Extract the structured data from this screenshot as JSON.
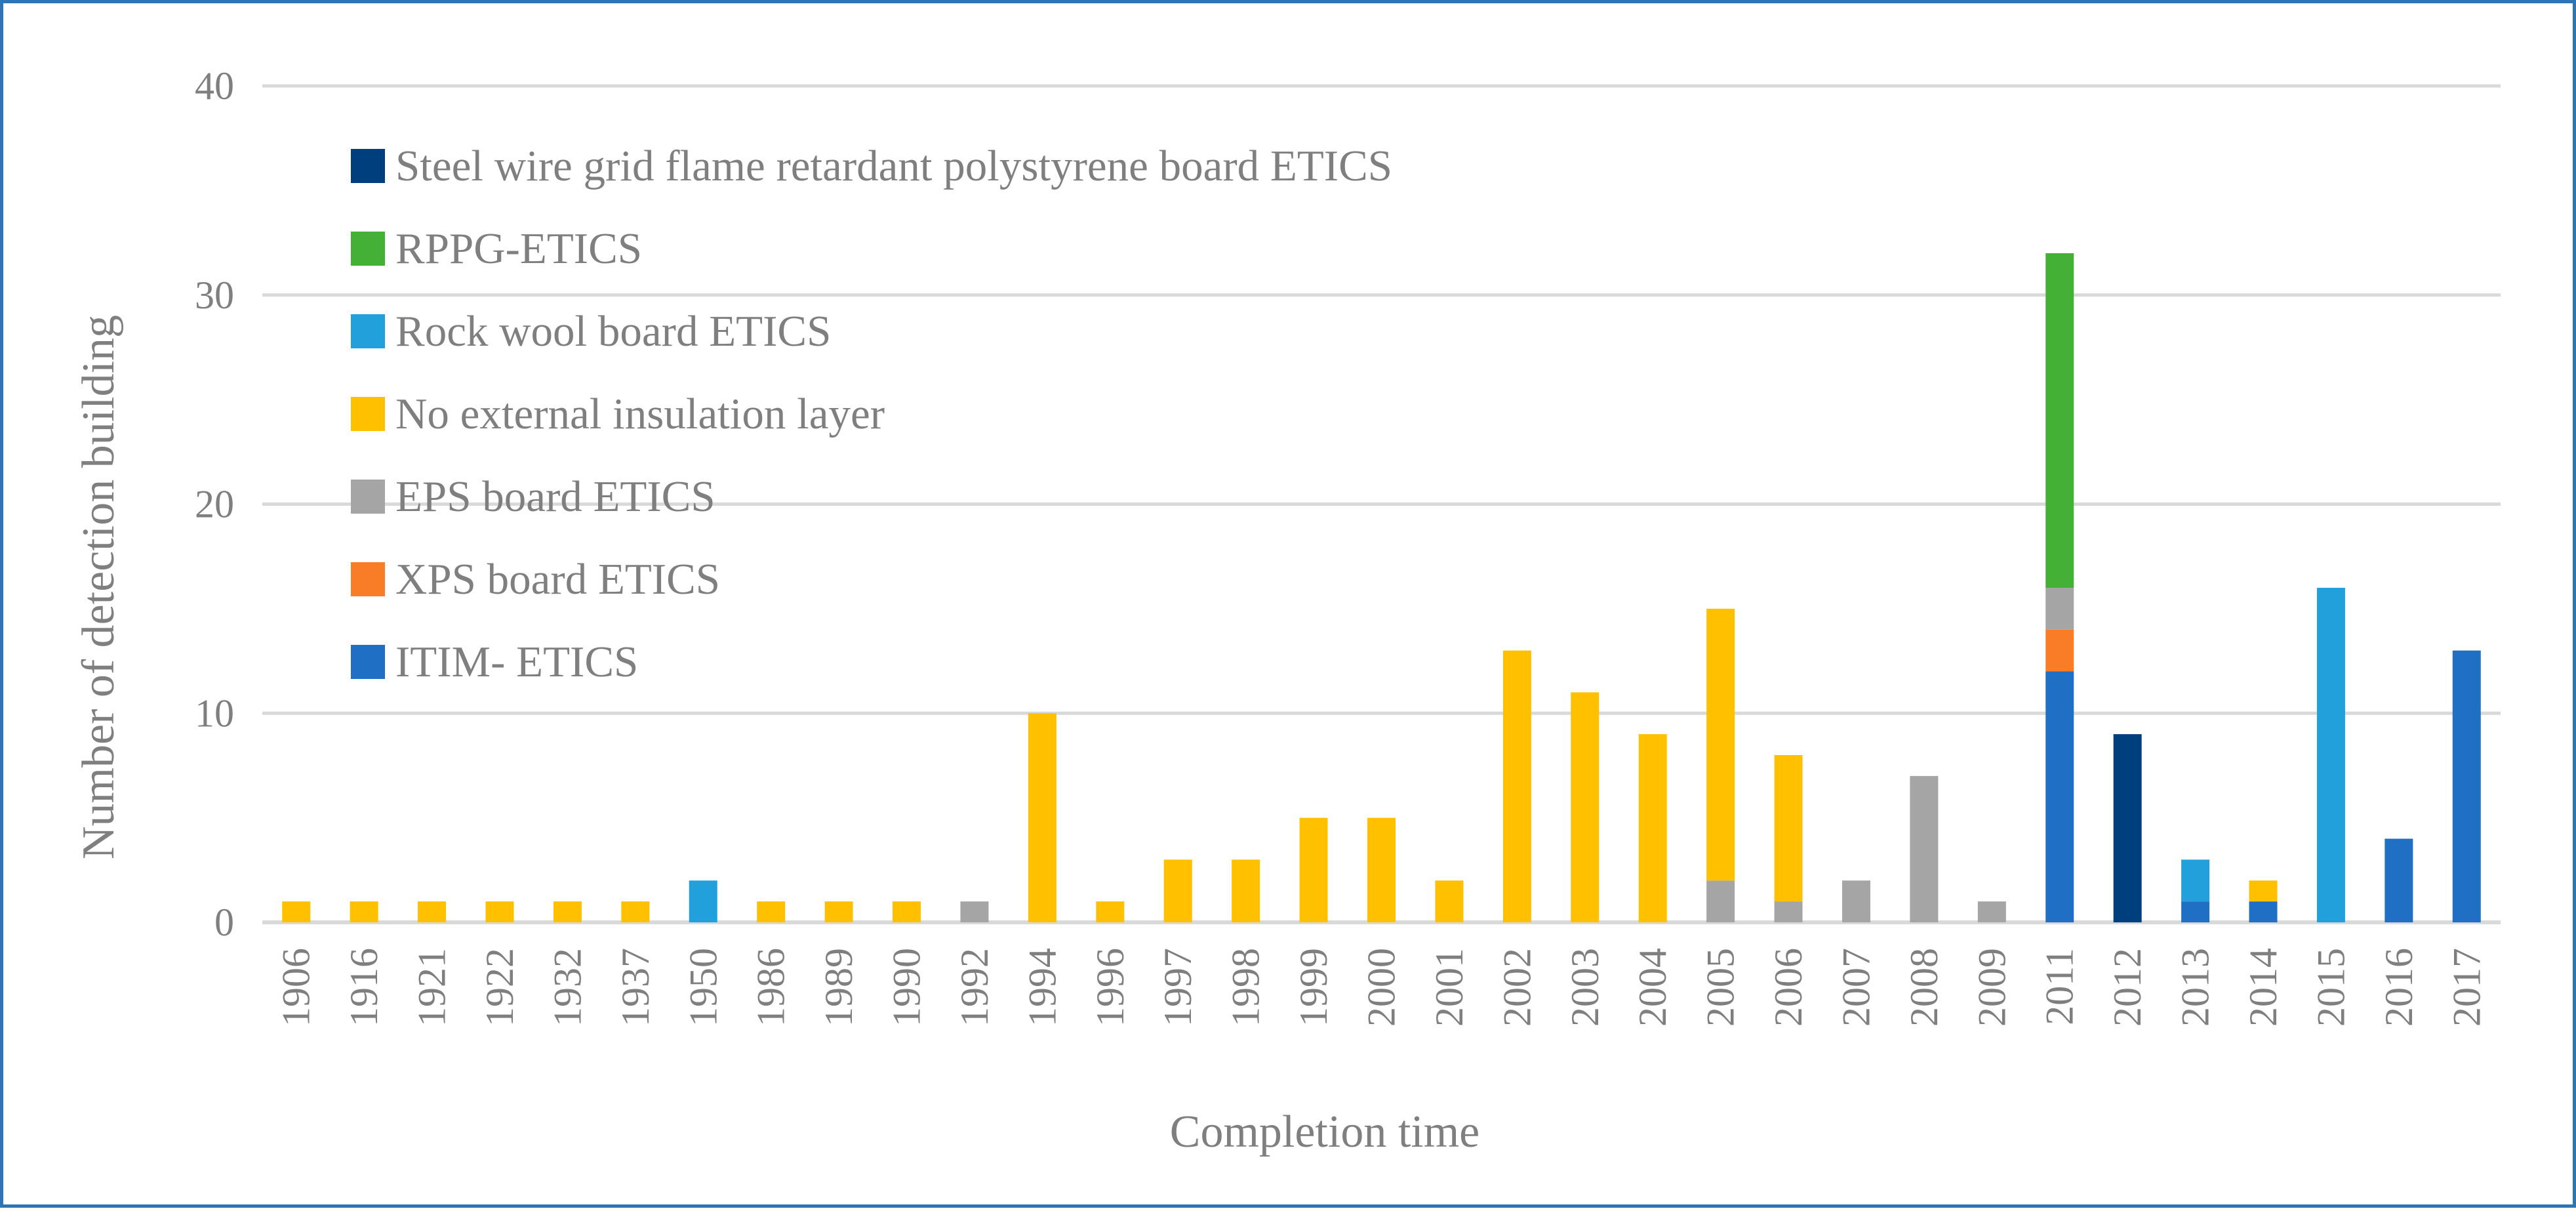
{
  "chart_data": {
    "type": "bar",
    "stacked": true,
    "xlabel": "Completion time",
    "ylabel": "Number of detection building",
    "ylim": [
      0,
      40
    ],
    "yticks": [
      "0",
      "10",
      "20",
      "30",
      "40"
    ],
    "grid": true,
    "legend_position": "top-left",
    "categories": [
      "1906",
      "1916",
      "1921",
      "1922",
      "1932",
      "1937",
      "1950",
      "1986",
      "1989",
      "1990",
      "1992",
      "1994",
      "1996",
      "1997",
      "1998",
      "1999",
      "2000",
      "2001",
      "2002",
      "2003",
      "2004",
      "2005",
      "2006",
      "2007",
      "2008",
      "2009",
      "2011",
      "2012",
      "2013",
      "2014",
      "2015",
      "2016",
      "2017"
    ],
    "series": [
      {
        "name": "ITIM- ETICS",
        "color": "#1f6fc5",
        "values": [
          0,
          0,
          0,
          0,
          0,
          0,
          0,
          0,
          0,
          0,
          0,
          0,
          0,
          0,
          0,
          0,
          0,
          0,
          0,
          0,
          0,
          0,
          0,
          0,
          0,
          0,
          12,
          0,
          1,
          1,
          0,
          4,
          13
        ]
      },
      {
        "name": "XPS board ETICS",
        "color": "#f97d26",
        "values": [
          0,
          0,
          0,
          0,
          0,
          0,
          0,
          0,
          0,
          0,
          0,
          0,
          0,
          0,
          0,
          0,
          0,
          0,
          0,
          0,
          0,
          0,
          0,
          0,
          0,
          0,
          2,
          0,
          0,
          0,
          0,
          0,
          0
        ]
      },
      {
        "name": "EPS board ETICS",
        "color": "#a5a5a5",
        "values": [
          0,
          0,
          0,
          0,
          0,
          0,
          0,
          0,
          0,
          0,
          1,
          0,
          0,
          0,
          0,
          0,
          0,
          0,
          0,
          0,
          0,
          2,
          1,
          2,
          7,
          1,
          2,
          0,
          0,
          0,
          0,
          0,
          0
        ]
      },
      {
        "name": "No external insulation layer",
        "color": "#ffc000",
        "values": [
          1,
          1,
          1,
          1,
          1,
          1,
          0,
          1,
          1,
          1,
          0,
          10,
          1,
          3,
          3,
          5,
          5,
          2,
          13,
          11,
          9,
          13,
          7,
          0,
          0,
          0,
          0,
          0,
          0,
          1,
          0,
          0,
          0
        ]
      },
      {
        "name": "Rock wool board ETICS",
        "color": "#22a0db",
        "values": [
          0,
          0,
          0,
          0,
          0,
          0,
          2,
          0,
          0,
          0,
          0,
          0,
          0,
          0,
          0,
          0,
          0,
          0,
          0,
          0,
          0,
          0,
          0,
          0,
          0,
          0,
          0,
          0,
          2,
          0,
          16,
          0,
          0
        ]
      },
      {
        "name": "RPPG-ETICS",
        "color": "#44b035",
        "values": [
          0,
          0,
          0,
          0,
          0,
          0,
          0,
          0,
          0,
          0,
          0,
          0,
          0,
          0,
          0,
          0,
          0,
          0,
          0,
          0,
          0,
          0,
          0,
          0,
          0,
          0,
          16,
          0,
          0,
          0,
          0,
          0,
          0
        ]
      },
      {
        "name": "Steel wire grid flame retardant polystyrene board ETICS",
        "color": "#003f7d",
        "values": [
          0,
          0,
          0,
          0,
          0,
          0,
          0,
          0,
          0,
          0,
          0,
          0,
          0,
          0,
          0,
          0,
          0,
          0,
          0,
          0,
          0,
          0,
          0,
          0,
          0,
          0,
          0,
          9,
          0,
          0,
          0,
          0,
          0
        ]
      }
    ]
  }
}
